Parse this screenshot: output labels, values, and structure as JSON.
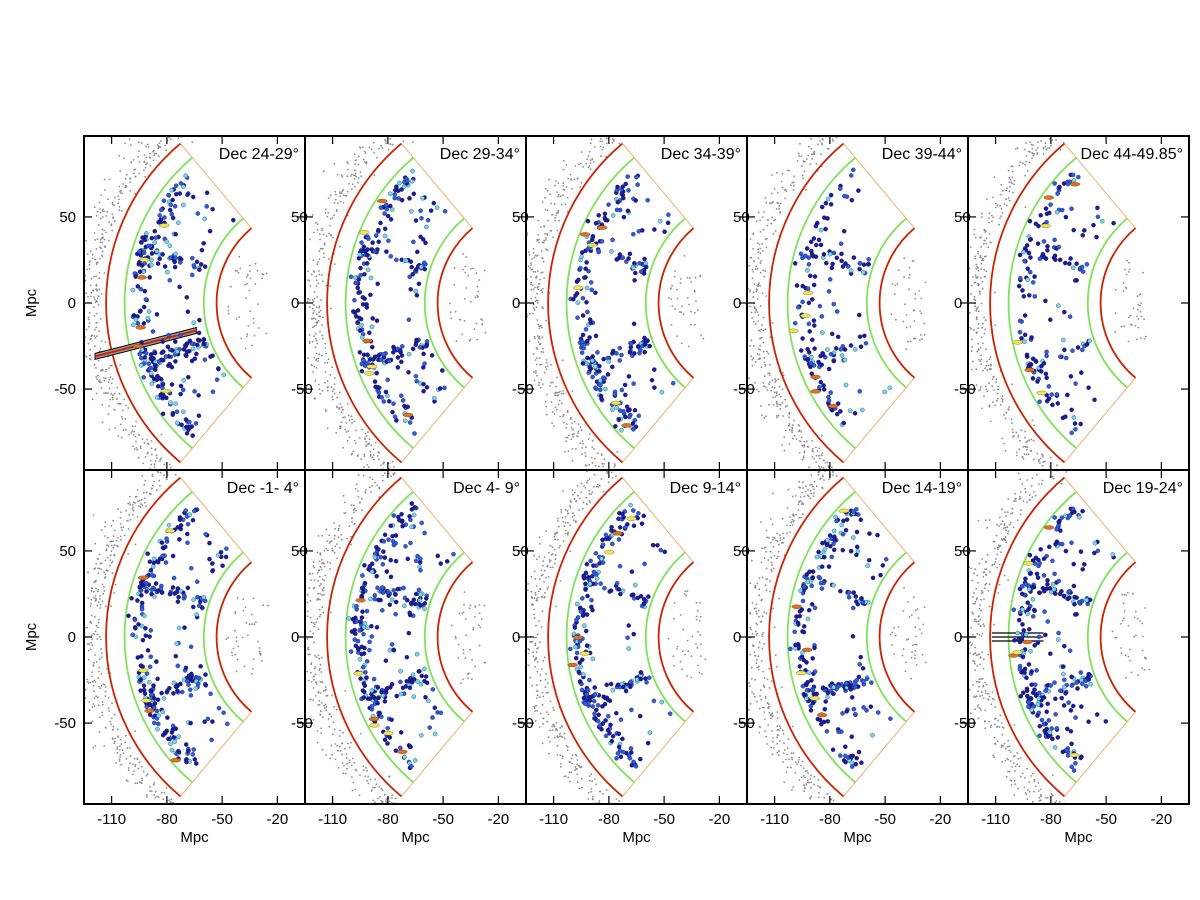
{
  "chart_data": {
    "type": "scatter",
    "description_units": "Mpc",
    "shared": {
      "x_label": "Mpc",
      "y_label": "Mpc",
      "xlim": [
        -125,
        -5
      ],
      "ylim": [
        -97,
        97
      ],
      "x_ticks": [
        "-110",
        "-80",
        "-50",
        "-20"
      ],
      "y_ticks": [
        "50",
        "0",
        "-50"
      ],
      "shell_radii": {
        "outer_red": 113,
        "outer_green": 103,
        "inner_green": 60,
        "inner_red": 53
      },
      "wedge_half_angle_deg": 50,
      "colors": {
        "red_arc": "#cc2200",
        "green_arc": "#7fe35a",
        "rays": "#f0b070",
        "background_points": "#8c8c8c",
        "galaxy_dark": "#1a1aa8",
        "galaxy_mid": "#2e5be6",
        "galaxy_light": "#6fd8f0"
      }
    },
    "panels": [
      {
        "title": "Dec 24-29°",
        "row": 0,
        "col": 0,
        "show_y_label": true,
        "show_x_label": false,
        "feature": "diagonal-beam"
      },
      {
        "title": "Dec 29-34°",
        "row": 0,
        "col": 1,
        "show_y_label": false,
        "show_x_label": false,
        "feature": "void"
      },
      {
        "title": "Dec 34-39°",
        "row": 0,
        "col": 2,
        "show_y_label": false,
        "show_x_label": false,
        "feature": "void"
      },
      {
        "title": "Dec 39-44°",
        "row": 0,
        "col": 3,
        "show_y_label": false,
        "show_x_label": false,
        "feature": "sparse"
      },
      {
        "title": "Dec 44-49.85°",
        "row": 0,
        "col": 4,
        "show_y_label": false,
        "show_x_label": false,
        "feature": "sparse"
      },
      {
        "title": "Dec -1- 4°",
        "row": 1,
        "col": 0,
        "show_y_label": true,
        "show_x_label": true,
        "feature": "filament"
      },
      {
        "title": "Dec  4- 9°",
        "row": 1,
        "col": 1,
        "show_y_label": false,
        "show_x_label": true,
        "feature": "filament"
      },
      {
        "title": "Dec  9-14°",
        "row": 1,
        "col": 2,
        "show_y_label": false,
        "show_x_label": true,
        "feature": "void"
      },
      {
        "title": "Dec 14-19°",
        "row": 1,
        "col": 3,
        "show_y_label": false,
        "show_x_label": true,
        "feature": "void"
      },
      {
        "title": "Dec 19-24°",
        "row": 1,
        "col": 4,
        "show_y_label": false,
        "show_x_label": true,
        "feature": "horizontal-beam"
      }
    ]
  }
}
